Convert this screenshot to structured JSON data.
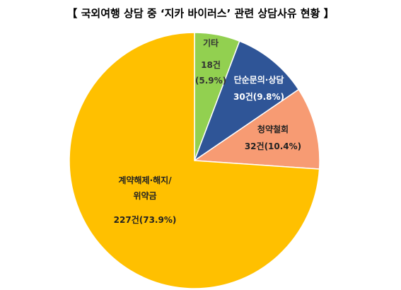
{
  "chart_data": {
    "type": "pie",
    "title": "【 국외여행 상담 중 ‘지카 바이러스’ 관련 상담사유 현황 】",
    "categories": [
      "기타",
      "단순문의·상담",
      "청약철회",
      "계약해제·해지/\n위약금"
    ],
    "values": [
      18,
      30,
      32,
      227
    ],
    "value_labels": [
      "18건\n(5.9%)",
      "30건(9.8%)",
      "32건(10.4%)",
      "227건(73.9%)"
    ],
    "colors": [
      "#92d050",
      "#2f5597",
      "#f79b73",
      "#ffc000"
    ]
  }
}
